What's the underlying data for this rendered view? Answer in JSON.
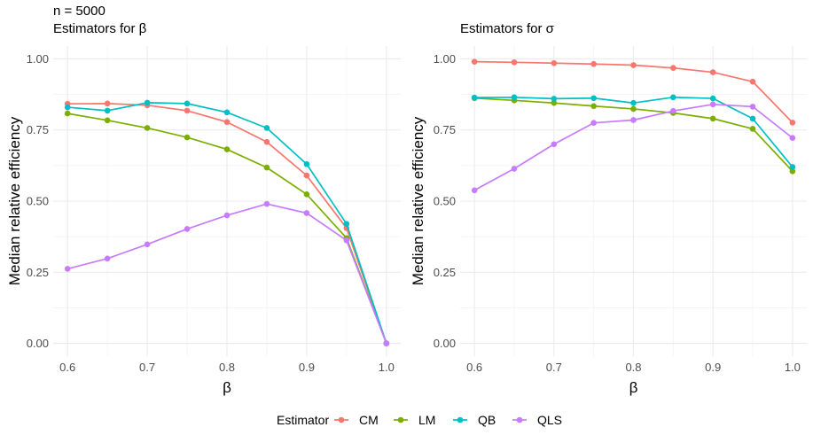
{
  "header": {
    "n_label": "n = 5000"
  },
  "legend": {
    "title": "Estimator",
    "items": [
      {
        "name": "CM",
        "color": "#F8766D"
      },
      {
        "name": "LM",
        "color": "#7CAE00"
      },
      {
        "name": "QB",
        "color": "#00BFC4"
      },
      {
        "name": "QLS",
        "color": "#C77CFF"
      }
    ]
  },
  "chart_data": [
    {
      "type": "line",
      "title": "Estimators for β",
      "xlabel": "β",
      "ylabel": "Median relative efficiency",
      "xlim": [
        0.6,
        1.0
      ],
      "ylim": [
        0,
        1.0
      ],
      "xticks": [
        0.6,
        0.7,
        0.8,
        0.9,
        1.0
      ],
      "xtick_labels": [
        "0.6",
        "0.7",
        "0.8",
        "0.9",
        "1.0"
      ],
      "yticks": [
        0,
        0.25,
        0.5,
        0.75,
        1.0
      ],
      "ytick_labels": [
        "0.00",
        "0.25",
        "0.50",
        "0.75",
        "1.00"
      ],
      "x": [
        0.6,
        0.65,
        0.7,
        0.75,
        0.8,
        0.85,
        0.9,
        0.95,
        1.0
      ],
      "series": [
        {
          "name": "CM",
          "values": [
            0.842,
            0.843,
            0.837,
            0.818,
            0.778,
            0.708,
            0.59,
            0.405,
            0.0
          ]
        },
        {
          "name": "LM",
          "values": [
            0.808,
            0.784,
            0.757,
            0.724,
            0.682,
            0.618,
            0.524,
            0.37,
            0.0
          ]
        },
        {
          "name": "QB",
          "values": [
            0.83,
            0.818,
            0.846,
            0.843,
            0.812,
            0.757,
            0.63,
            0.42,
            0.0
          ]
        },
        {
          "name": "QLS",
          "values": [
            0.262,
            0.298,
            0.348,
            0.402,
            0.45,
            0.49,
            0.458,
            0.362,
            0.0
          ]
        }
      ]
    },
    {
      "type": "line",
      "title": "Estimators for σ",
      "xlabel": "β",
      "ylabel": "Median relative efficiency",
      "xlim": [
        0.6,
        1.0
      ],
      "ylim": [
        0,
        1.0
      ],
      "xticks": [
        0.6,
        0.7,
        0.8,
        0.9,
        1.0
      ],
      "xtick_labels": [
        "0.6",
        "0.7",
        "0.8",
        "0.9",
        "1.0"
      ],
      "yticks": [
        0,
        0.25,
        0.5,
        0.75,
        1.0
      ],
      "ytick_labels": [
        "0.00",
        "0.25",
        "0.50",
        "0.75",
        "1.00"
      ],
      "x": [
        0.6,
        0.65,
        0.7,
        0.75,
        0.8,
        0.85,
        0.9,
        0.95,
        1.0
      ],
      "series": [
        {
          "name": "CM",
          "values": [
            0.99,
            0.988,
            0.985,
            0.982,
            0.978,
            0.968,
            0.953,
            0.92,
            0.776
          ]
        },
        {
          "name": "LM",
          "values": [
            0.862,
            0.854,
            0.845,
            0.834,
            0.824,
            0.81,
            0.79,
            0.754,
            0.605
          ]
        },
        {
          "name": "QB",
          "values": [
            0.864,
            0.865,
            0.86,
            0.862,
            0.845,
            0.865,
            0.861,
            0.79,
            0.62
          ]
        },
        {
          "name": "QLS",
          "values": [
            0.538,
            0.614,
            0.7,
            0.775,
            0.785,
            0.817,
            0.84,
            0.832,
            0.722
          ]
        }
      ]
    }
  ]
}
